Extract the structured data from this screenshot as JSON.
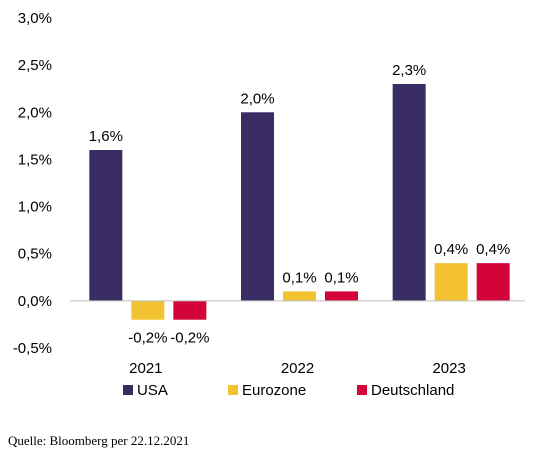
{
  "chart_data": {
    "type": "bar",
    "categories": [
      "2021",
      "2022",
      "2023"
    ],
    "series": [
      {
        "name": "USA",
        "color": "#3a2d63",
        "values": [
          1.6,
          2.0,
          2.3
        ],
        "labels": [
          "1,6%",
          "2,0%",
          "2,3%"
        ]
      },
      {
        "name": "Eurozone",
        "color": "#f2c230",
        "values": [
          -0.2,
          0.1,
          0.4
        ],
        "labels": [
          "-0,2%",
          "0,1%",
          "0,4%"
        ]
      },
      {
        "name": "Deutschland",
        "color": "#d2043a",
        "values": [
          -0.2,
          0.1,
          0.4
        ],
        "labels": [
          "-0,2%",
          "0,1%",
          "0,4%"
        ]
      }
    ],
    "ylim": [
      -0.5,
      3.0
    ],
    "yticks": [
      -0.5,
      0.0,
      0.5,
      1.0,
      1.5,
      2.0,
      2.5,
      3.0
    ],
    "ytick_labels": [
      "-0,5%",
      "0,0%",
      "0,5%",
      "1,0%",
      "1,5%",
      "2,0%",
      "2,5%",
      "3,0%"
    ],
    "grid": false,
    "legend_position": "bottom",
    "title": "",
    "xlabel": "",
    "ylabel": ""
  },
  "source": "Quelle: Bloomberg per 22.12.2021"
}
